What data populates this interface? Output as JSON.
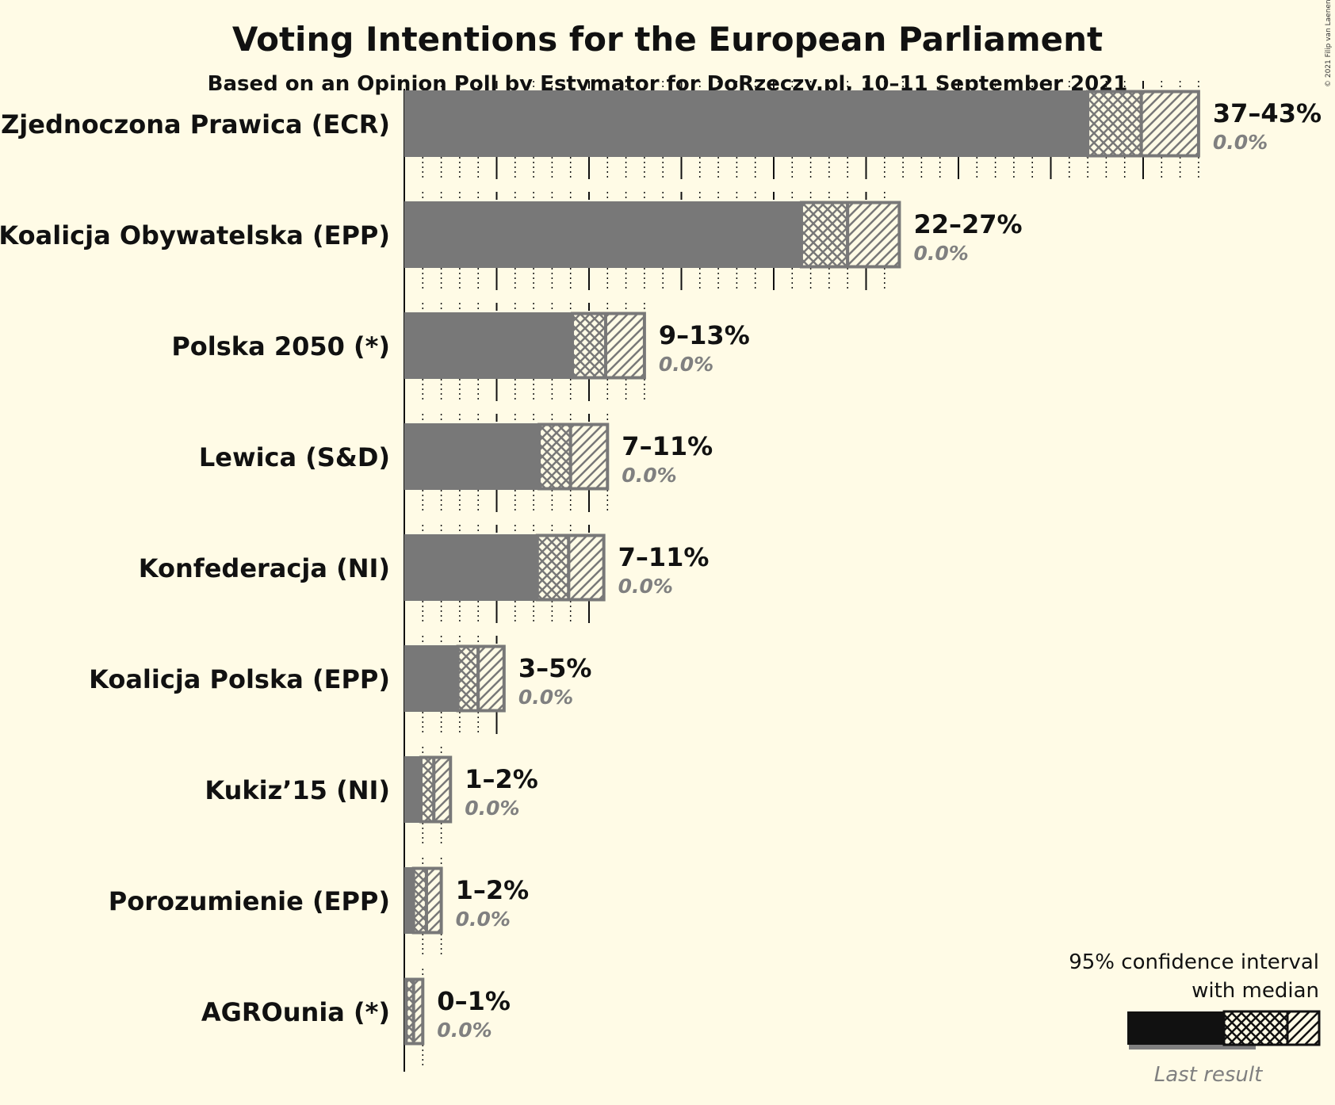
{
  "title": "Voting Intentions for the European Parliament",
  "subtitle": "Based on an Opinion Poll by Estymator for DoRzeczy.pl, 10–11 September 2021",
  "copyright": "© 2021 Filip van Laenen",
  "legend": {
    "line1": "95% confidence interval",
    "line2": "with median",
    "last_result": "Last result"
  },
  "colors": {
    "background": "#fffbe6",
    "bar": "#787878",
    "text": "#111111",
    "last_result": "#808080"
  },
  "chart_data": {
    "type": "bar",
    "orientation": "horizontal",
    "x_axis_range": [
      0,
      43
    ],
    "title": "Voting Intentions for the European Parliament",
    "categories": [
      "Zjednoczona Prawica (ECR)",
      "Koalicja Obywatelska (EPP)",
      "Polska 2050 (*)",
      "Lewica (S&D)",
      "Konfederacja (NI)",
      "Koalicja Polska (EPP)",
      "Kukiz’15 (NI)",
      "Porozumienie (EPP)",
      "AGROunia (*)"
    ],
    "range_labels": [
      "37–43%",
      "22–27%",
      "9–13%",
      "7–11%",
      "7–11%",
      "3–5%",
      "1–2%",
      "1–2%",
      "0–1%"
    ],
    "last_result_labels": [
      "0.0%",
      "0.0%",
      "0.0%",
      "0.0%",
      "0.0%",
      "0.0%",
      "0.0%",
      "0.0%",
      "0.0%"
    ],
    "ci_low": [
      37.0,
      21.5,
      9.1,
      7.3,
      7.2,
      2.9,
      0.9,
      0.5,
      0.1
    ],
    "median": [
      39.9,
      24.0,
      10.9,
      9.0,
      8.9,
      4.0,
      1.6,
      1.2,
      0.5
    ],
    "ci_high": [
      43.0,
      26.8,
      13.0,
      11.0,
      10.8,
      5.4,
      2.5,
      2.0,
      1.0
    ],
    "last_result": [
      0.0,
      0.0,
      0.0,
      0.0,
      0.0,
      0.0,
      0.0,
      0.0,
      0.0
    ]
  }
}
